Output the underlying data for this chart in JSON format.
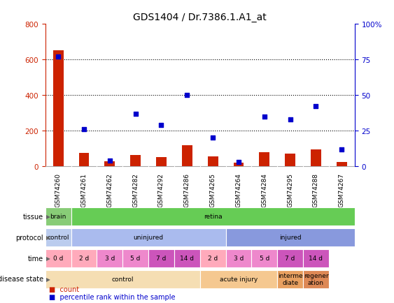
{
  "title": "GDS1404 / Dr.7386.1.A1_at",
  "samples": [
    "GSM74260",
    "GSM74261",
    "GSM74262",
    "GSM74282",
    "GSM74292",
    "GSM74286",
    "GSM74265",
    "GSM74264",
    "GSM74284",
    "GSM74295",
    "GSM74288",
    "GSM74267"
  ],
  "count_values": [
    650,
    75,
    30,
    65,
    50,
    120,
    55,
    20,
    80,
    70,
    95,
    25
  ],
  "percentile_values": [
    77,
    26,
    4,
    37,
    29,
    50,
    20,
    3,
    35,
    33,
    42,
    12
  ],
  "ylim_left": [
    0,
    800
  ],
  "ylim_right": [
    0,
    100
  ],
  "yticks_left": [
    0,
    200,
    400,
    600,
    800
  ],
  "yticks_right": [
    0,
    25,
    50,
    75,
    100
  ],
  "tissue_data": [
    {
      "label": "brain",
      "start": 0,
      "end": 1,
      "color": "#88CC77"
    },
    {
      "label": "retina",
      "start": 1,
      "end": 12,
      "color": "#66CC55"
    }
  ],
  "protocol_data": [
    {
      "label": "control",
      "start": 0,
      "end": 1,
      "color": "#BBCCEE"
    },
    {
      "label": "uninjured",
      "start": 1,
      "end": 7,
      "color": "#AABBEE"
    },
    {
      "label": "injured",
      "start": 7,
      "end": 12,
      "color": "#8899DD"
    }
  ],
  "time_data": [
    {
      "label": "0 d",
      "start": 0,
      "end": 1,
      "color": "#FFAABB"
    },
    {
      "label": "2 d",
      "start": 1,
      "end": 2,
      "color": "#FFAABB"
    },
    {
      "label": "3 d",
      "start": 2,
      "end": 3,
      "color": "#EE88CC"
    },
    {
      "label": "5 d",
      "start": 3,
      "end": 4,
      "color": "#EE88CC"
    },
    {
      "label": "7 d",
      "start": 4,
      "end": 5,
      "color": "#CC55BB"
    },
    {
      "label": "14 d",
      "start": 5,
      "end": 6,
      "color": "#CC55BB"
    },
    {
      "label": "2 d",
      "start": 6,
      "end": 7,
      "color": "#FFAABB"
    },
    {
      "label": "3 d",
      "start": 7,
      "end": 8,
      "color": "#EE88CC"
    },
    {
      "label": "5 d",
      "start": 8,
      "end": 9,
      "color": "#EE88CC"
    },
    {
      "label": "7 d",
      "start": 9,
      "end": 10,
      "color": "#CC55BB"
    },
    {
      "label": "14 d",
      "start": 10,
      "end": 11,
      "color": "#CC55BB"
    }
  ],
  "disease_data": [
    {
      "label": "control",
      "start": 0,
      "end": 6,
      "color": "#F5DEB3"
    },
    {
      "label": "acute injury",
      "start": 6,
      "end": 9,
      "color": "#F5C890"
    },
    {
      "label": "interme\ndiate",
      "start": 9,
      "end": 10,
      "color": "#E8A060"
    },
    {
      "label": "regener\nation",
      "start": 10,
      "end": 11,
      "color": "#DD8855"
    }
  ],
  "bar_color": "#CC2200",
  "square_color": "#0000CC",
  "left_axis_color": "#CC2200",
  "right_axis_color": "#0000CC",
  "xticklabel_bg": "#CCCCCC",
  "legend_bar_label": "count",
  "legend_sq_label": "percentile rank within the sample",
  "bar_width": 0.4
}
